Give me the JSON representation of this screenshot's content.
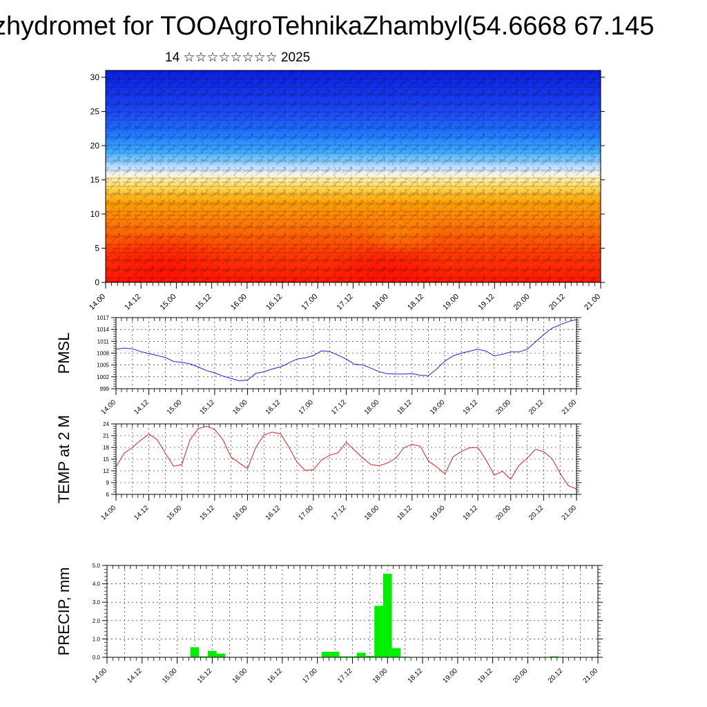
{
  "title": "zhydromet for TOOAgroTehnikaZhambyl(54.6668 67.145",
  "subtitle": "14 ☆☆☆☆☆☆☆☆ 2025",
  "x_tick_labels": [
    "14.00",
    "14.12",
    "15.00",
    "15.12",
    "16.00",
    "16.12",
    "17.00",
    "17.12",
    "18.00",
    "18.12",
    "19.00",
    "19.12",
    "20.00",
    "20.12",
    "21.00"
  ],
  "colors": {
    "pmsl_line": "#1f1fd6",
    "temp_line": "#d61f1f",
    "precip_bar": "#00ee00",
    "profile_warm": "#ff2a00",
    "profile_cold": "#0a1fe0"
  },
  "chart_data": [
    {
      "type": "heatmap",
      "name": "vertical-profile",
      "ylim": [
        0,
        31
      ],
      "yticks": [
        0,
        5,
        10,
        15,
        20,
        25,
        30
      ],
      "x_range_days": [
        14.0,
        21.0
      ],
      "colormap": "blue-white-yellow-red (cold aloft, warm near ground), overlaid with wind barbs",
      "warm_layer_top_y": 15.5
    },
    {
      "type": "line",
      "name": "pmsl",
      "ylabel": "PMSL",
      "ylim": [
        999,
        1017
      ],
      "yticks": [
        999,
        1002,
        1005,
        1008,
        1011,
        1014,
        1017
      ],
      "grid": true,
      "x": [
        14.0,
        14.125,
        14.25,
        14.375,
        14.5,
        14.625,
        14.75,
        14.875,
        15.0,
        15.125,
        15.25,
        15.375,
        15.5,
        15.625,
        15.75,
        15.875,
        16.0,
        16.125,
        16.25,
        16.375,
        16.5,
        16.625,
        16.75,
        16.875,
        17.0,
        17.125,
        17.25,
        17.375,
        17.5,
        17.625,
        17.75,
        17.875,
        18.0,
        18.125,
        18.25,
        18.375,
        18.5,
        18.625,
        18.75,
        18.875,
        19.0,
        19.125,
        19.25,
        19.375,
        19.5,
        19.625,
        19.75,
        19.875,
        20.0,
        20.125,
        20.25,
        20.375,
        20.5,
        20.625,
        20.75,
        20.875,
        21.0
      ],
      "values": [
        1009,
        1009.3,
        1009.1,
        1008.4,
        1007.9,
        1007.4,
        1006.9,
        1005.9,
        1005.7,
        1005.3,
        1004.5,
        1003.6,
        1003,
        1002.2,
        1001.6,
        1001,
        1001.2,
        1002.9,
        1003.3,
        1004,
        1004.5,
        1005.5,
        1006.5,
        1006.8,
        1007.4,
        1008.6,
        1008.4,
        1007.5,
        1006.5,
        1005.2,
        1005,
        1004.2,
        1003.3,
        1002.8,
        1002.7,
        1002.7,
        1002.8,
        1002.4,
        1002.3,
        1004,
        1006,
        1007.3,
        1008,
        1008.5,
        1009,
        1008.5,
        1007.3,
        1007.7,
        1008.3,
        1008.3,
        1009,
        1010.8,
        1012.7,
        1014.3,
        1015.2,
        1016,
        1016.5
      ]
    },
    {
      "type": "line",
      "name": "temp",
      "ylabel": "TEMP at 2 M",
      "ylim": [
        6,
        24
      ],
      "yticks": [
        6,
        9,
        12,
        15,
        18,
        21,
        24
      ],
      "grid": true,
      "x": [
        14.0,
        14.125,
        14.25,
        14.375,
        14.5,
        14.625,
        14.75,
        14.875,
        15.0,
        15.125,
        15.25,
        15.375,
        15.5,
        15.625,
        15.75,
        15.875,
        16.0,
        16.125,
        16.25,
        16.375,
        16.5,
        16.625,
        16.75,
        16.875,
        17.0,
        17.125,
        17.25,
        17.375,
        17.5,
        17.625,
        17.75,
        17.875,
        18.0,
        18.125,
        18.25,
        18.375,
        18.5,
        18.625,
        18.75,
        18.875,
        19.0,
        19.125,
        19.25,
        19.375,
        19.5,
        19.625,
        19.75,
        19.875,
        20.0,
        20.125,
        20.25,
        20.375,
        20.5,
        20.625,
        20.75,
        20.875,
        21.0
      ],
      "values": [
        13,
        16.5,
        18,
        19.8,
        21.4,
        20,
        16.5,
        13.2,
        13.6,
        19.9,
        22.8,
        23.4,
        22.6,
        20,
        15.5,
        14,
        12.6,
        18,
        21.2,
        21.9,
        21.5,
        18.2,
        14.3,
        12.1,
        12.3,
        14.8,
        16,
        16.6,
        19.3,
        17.3,
        15.3,
        13.6,
        13.3,
        14,
        15.2,
        17.9,
        18.8,
        18.3,
        14.5,
        13,
        11.2,
        15.6,
        17,
        17.9,
        18,
        14.8,
        10.9,
        11.9,
        9.9,
        13.4,
        15.2,
        17.5,
        16.9,
        15.2,
        11.4,
        8.2,
        7.4
      ]
    },
    {
      "type": "bar",
      "name": "precip",
      "ylabel": "PRECIP, mm",
      "ylim": [
        0,
        5
      ],
      "yticks": [
        "0.0",
        "1.0",
        "2.0",
        "3.0",
        "4.0",
        "5.0"
      ],
      "grid": true,
      "bar_width_days": 0.125,
      "x": [
        15.25,
        15.375,
        15.5,
        15.625,
        17.125,
        17.25,
        17.375,
        17.5,
        17.625,
        17.75,
        17.875,
        18.0,
        18.125,
        18.25,
        20.375
      ],
      "values": [
        0.55,
        0.05,
        0.35,
        0.2,
        0.3,
        0.3,
        0.05,
        0.05,
        0.25,
        0.08,
        2.8,
        4.55,
        0.5,
        0.03,
        0.05
      ]
    }
  ]
}
